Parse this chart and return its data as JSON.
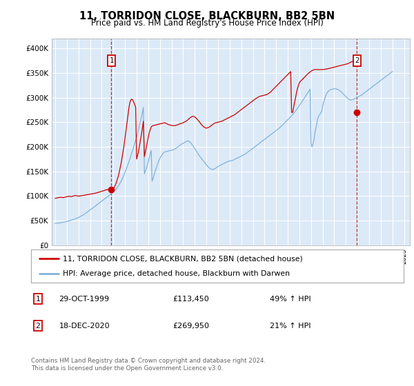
{
  "title": "11, TORRIDON CLOSE, BLACKBURN, BB2 5BN",
  "subtitle": "Price paid vs. HM Land Registry's House Price Index (HPI)",
  "background_color": "#dce9f7",
  "ylim": [
    0,
    420000
  ],
  "yticks": [
    0,
    50000,
    100000,
    150000,
    200000,
    250000,
    300000,
    350000,
    400000
  ],
  "ytick_labels": [
    "£0",
    "£50K",
    "£100K",
    "£150K",
    "£200K",
    "£250K",
    "£300K",
    "£350K",
    "£400K"
  ],
  "red_line_color": "#cc0000",
  "blue_line_color": "#7fb3d9",
  "sale1_year": 1999.83,
  "sale1_price": 113450,
  "sale1_label": "1",
  "sale1_date": "29-OCT-1999",
  "sale1_amount": "£113,450",
  "sale1_hpi": "49% ↑ HPI",
  "sale2_year": 2020.96,
  "sale2_price": 269950,
  "sale2_label": "2",
  "sale2_date": "18-DEC-2020",
  "sale2_amount": "£269,950",
  "sale2_hpi": "21% ↑ HPI",
  "legend_label_red": "11, TORRIDON CLOSE, BLACKBURN, BB2 5BN (detached house)",
  "legend_label_blue": "HPI: Average price, detached house, Blackburn with Darwen",
  "footer": "Contains HM Land Registry data © Crown copyright and database right 2024.\nThis data is licensed under the Open Government Licence v3.0.",
  "hpi_x": [
    1995.0,
    1995.08,
    1995.17,
    1995.25,
    1995.33,
    1995.42,
    1995.5,
    1995.58,
    1995.67,
    1995.75,
    1995.83,
    1995.92,
    1996.0,
    1996.08,
    1996.17,
    1996.25,
    1996.33,
    1996.42,
    1996.5,
    1996.58,
    1996.67,
    1996.75,
    1996.83,
    1996.92,
    1997.0,
    1997.08,
    1997.17,
    1997.25,
    1997.33,
    1997.42,
    1997.5,
    1997.58,
    1997.67,
    1997.75,
    1997.83,
    1997.92,
    1998.0,
    1998.08,
    1998.17,
    1998.25,
    1998.33,
    1998.42,
    1998.5,
    1998.58,
    1998.67,
    1998.75,
    1998.83,
    1998.92,
    1999.0,
    1999.08,
    1999.17,
    1999.25,
    1999.33,
    1999.42,
    1999.5,
    1999.58,
    1999.67,
    1999.75,
    1999.83,
    1999.92,
    2000.0,
    2000.08,
    2000.17,
    2000.25,
    2000.33,
    2000.42,
    2000.5,
    2000.58,
    2000.67,
    2000.75,
    2000.83,
    2000.92,
    2001.0,
    2001.08,
    2001.17,
    2001.25,
    2001.33,
    2001.42,
    2001.5,
    2001.58,
    2001.67,
    2001.75,
    2001.83,
    2001.92,
    2002.0,
    2002.08,
    2002.17,
    2002.25,
    2002.33,
    2002.42,
    2002.5,
    2002.58,
    2002.67,
    2002.75,
    2002.83,
    2002.92,
    2003.0,
    2003.08,
    2003.17,
    2003.25,
    2003.33,
    2003.42,
    2003.5,
    2003.58,
    2003.67,
    2003.75,
    2003.83,
    2003.92,
    2004.0,
    2004.08,
    2004.17,
    2004.25,
    2004.33,
    2004.42,
    2004.5,
    2004.58,
    2004.67,
    2004.75,
    2004.83,
    2004.92,
    2005.0,
    2005.08,
    2005.17,
    2005.25,
    2005.33,
    2005.42,
    2005.5,
    2005.58,
    2005.67,
    2005.75,
    2005.83,
    2005.92,
    2006.0,
    2006.08,
    2006.17,
    2006.25,
    2006.33,
    2006.42,
    2006.5,
    2006.58,
    2006.67,
    2006.75,
    2006.83,
    2006.92,
    2007.0,
    2007.08,
    2007.17,
    2007.25,
    2007.33,
    2007.42,
    2007.5,
    2007.58,
    2007.67,
    2007.75,
    2007.83,
    2007.92,
    2008.0,
    2008.08,
    2008.17,
    2008.25,
    2008.33,
    2008.42,
    2008.5,
    2008.58,
    2008.67,
    2008.75,
    2008.83,
    2008.92,
    2009.0,
    2009.08,
    2009.17,
    2009.25,
    2009.33,
    2009.42,
    2009.5,
    2009.58,
    2009.67,
    2009.75,
    2009.83,
    2009.92,
    2010.0,
    2010.08,
    2010.17,
    2010.25,
    2010.33,
    2010.42,
    2010.5,
    2010.58,
    2010.67,
    2010.75,
    2010.83,
    2010.92,
    2011.0,
    2011.08,
    2011.17,
    2011.25,
    2011.33,
    2011.42,
    2011.5,
    2011.58,
    2011.67,
    2011.75,
    2011.83,
    2011.92,
    2012.0,
    2012.08,
    2012.17,
    2012.25,
    2012.33,
    2012.42,
    2012.5,
    2012.58,
    2012.67,
    2012.75,
    2012.83,
    2012.92,
    2013.0,
    2013.08,
    2013.17,
    2013.25,
    2013.33,
    2013.42,
    2013.5,
    2013.58,
    2013.67,
    2013.75,
    2013.83,
    2013.92,
    2014.0,
    2014.08,
    2014.17,
    2014.25,
    2014.33,
    2014.42,
    2014.5,
    2014.58,
    2014.67,
    2014.75,
    2014.83,
    2014.92,
    2015.0,
    2015.08,
    2015.17,
    2015.25,
    2015.33,
    2015.42,
    2015.5,
    2015.58,
    2015.67,
    2015.75,
    2015.83,
    2015.92,
    2016.0,
    2016.08,
    2016.17,
    2016.25,
    2016.33,
    2016.42,
    2016.5,
    2016.58,
    2016.67,
    2016.75,
    2016.83,
    2016.92,
    2017.0,
    2017.08,
    2017.17,
    2017.25,
    2017.33,
    2017.42,
    2017.5,
    2017.58,
    2017.67,
    2017.75,
    2017.83,
    2017.92,
    2018.0,
    2018.08,
    2018.17,
    2018.25,
    2018.33,
    2018.42,
    2018.5,
    2018.58,
    2018.67,
    2018.75,
    2018.83,
    2018.92,
    2019.0,
    2019.08,
    2019.17,
    2019.25,
    2019.33,
    2019.42,
    2019.5,
    2019.58,
    2019.67,
    2019.75,
    2019.83,
    2019.92,
    2020.0,
    2020.08,
    2020.17,
    2020.25,
    2020.33,
    2020.42,
    2020.5,
    2020.58,
    2020.67,
    2020.75,
    2020.83,
    2020.92,
    2021.0,
    2021.08,
    2021.17,
    2021.25,
    2021.33,
    2021.42,
    2021.5,
    2021.58,
    2021.67,
    2021.75,
    2021.83,
    2021.92,
    2022.0,
    2022.08,
    2022.17,
    2022.25,
    2022.33,
    2022.42,
    2022.5,
    2022.58,
    2022.67,
    2022.75,
    2022.83,
    2022.92,
    2023.0,
    2023.08,
    2023.17,
    2023.25,
    2023.33,
    2023.42,
    2023.5,
    2023.58,
    2023.67,
    2023.75,
    2023.83,
    2023.92,
    2024.0,
    2024.08,
    2024.17,
    2024.25,
    2024.33,
    2024.42,
    2024.5,
    2024.58,
    2024.67,
    2024.75,
    2024.83,
    2024.92,
    2025.0
  ],
  "hpi_y": [
    44000,
    44200,
    44500,
    44800,
    45200,
    45500,
    45800,
    46200,
    46500,
    46900,
    47200,
    47600,
    48000,
    48500,
    49100,
    49700,
    50300,
    51000,
    51700,
    52400,
    53100,
    53800,
    54600,
    55400,
    56200,
    57200,
    58200,
    59300,
    60400,
    61600,
    62800,
    64200,
    65600,
    67000,
    68500,
    70000,
    71500,
    73000,
    74500,
    76000,
    77500,
    79000,
    80500,
    82000,
    83500,
    85000,
    86500,
    88000,
    89500,
    91000,
    92500,
    94000,
    95500,
    97000,
    98500,
    100000,
    101500,
    103000,
    104500,
    106000,
    108000,
    110000,
    112000,
    114500,
    117000,
    120000,
    123000,
    126500,
    130000,
    134000,
    138500,
    143000,
    148000,
    153000,
    158000,
    163500,
    169000,
    175000,
    181000,
    187500,
    194000,
    200500,
    207000,
    213500,
    220000,
    228000,
    236000,
    244000,
    252000,
    261000,
    270500,
    280000,
    145000,
    150000,
    156000,
    163000,
    170000,
    177500,
    185000,
    192500,
    130000,
    136000,
    142500,
    149000,
    155500,
    161500,
    167000,
    172000,
    176500,
    180000,
    183000,
    186000,
    188000,
    189500,
    190000,
    190500,
    191000,
    191500,
    192000,
    192500,
    193000,
    193500,
    194000,
    195000,
    196000,
    197500,
    199000,
    200500,
    202000,
    203500,
    205000,
    206000,
    207000,
    208000,
    209000,
    210500,
    211500,
    212000,
    211000,
    209500,
    207500,
    205000,
    202000,
    199000,
    196000,
    193000,
    190000,
    187000,
    184000,
    181000,
    178500,
    176000,
    173500,
    171000,
    168500,
    166000,
    163500,
    161000,
    159000,
    157000,
    155500,
    154500,
    154000,
    154000,
    154500,
    155500,
    157000,
    158500,
    160000,
    161000,
    162000,
    163000,
    164000,
    165000,
    166000,
    167000,
    168000,
    169000,
    170000,
    170500,
    171000,
    171500,
    172000,
    172500,
    173000,
    174000,
    175000,
    176000,
    177000,
    178000,
    179000,
    180000,
    181000,
    182000,
    183000,
    184000,
    185000,
    186500,
    188000,
    189500,
    191000,
    192500,
    194000,
    195500,
    197000,
    198500,
    200000,
    201500,
    203000,
    204500,
    206000,
    207500,
    209000,
    210500,
    212000,
    213500,
    215000,
    216500,
    218000,
    219500,
    221000,
    222500,
    224000,
    225500,
    227000,
    228500,
    230000,
    231500,
    233000,
    234500,
    236000,
    237500,
    239000,
    241000,
    243000,
    245000,
    247000,
    249000,
    251000,
    253000,
    255000,
    257000,
    259000,
    261000,
    263000,
    265500,
    268000,
    270500,
    273000,
    275500,
    278000,
    281000,
    284000,
    287000,
    290000,
    293000,
    296000,
    299000,
    302000,
    305000,
    308000,
    311000,
    314000,
    317000,
    208000,
    200000,
    205000,
    215000,
    228000,
    238000,
    248000,
    258000,
    263000,
    265000,
    269000,
    272000,
    282000,
    290000,
    297000,
    303000,
    308000,
    311000,
    313000,
    315000,
    316000,
    316500,
    317000,
    317500,
    318000,
    318000,
    317500,
    317000,
    316000,
    315000,
    313500,
    312000,
    310000,
    308000,
    306000,
    304000,
    302000,
    300000,
    298500,
    297000,
    295500,
    295000,
    295500,
    296000,
    297000,
    298000,
    299000,
    300000,
    301000,
    302000,
    303000,
    304000,
    305000,
    306500,
    308000,
    309500,
    311000,
    312500,
    314000,
    315500,
    317000,
    318500,
    320000,
    321500,
    323000,
    324500,
    326000,
    327500,
    329000,
    330500,
    332000,
    333500,
    335000,
    336500,
    338000,
    339500,
    341000,
    342500,
    344000,
    345500,
    347000,
    348500,
    350000,
    351500,
    353000
  ],
  "red_x": [
    1995.0,
    1995.08,
    1995.17,
    1995.25,
    1995.33,
    1995.42,
    1995.5,
    1995.58,
    1995.67,
    1995.75,
    1995.83,
    1995.92,
    1996.0,
    1996.08,
    1996.17,
    1996.25,
    1996.33,
    1996.42,
    1996.5,
    1996.58,
    1996.67,
    1996.75,
    1996.83,
    1996.92,
    1997.0,
    1997.08,
    1997.17,
    1997.25,
    1997.33,
    1997.42,
    1997.5,
    1997.58,
    1997.67,
    1997.75,
    1997.83,
    1997.92,
    1998.0,
    1998.08,
    1998.17,
    1998.25,
    1998.33,
    1998.42,
    1998.5,
    1998.58,
    1998.67,
    1998.75,
    1998.83,
    1998.92,
    1999.0,
    1999.08,
    1999.17,
    1999.25,
    1999.33,
    1999.42,
    1999.5,
    1999.58,
    1999.67,
    1999.75,
    1999.83,
    1999.92,
    2000.0,
    2000.08,
    2000.17,
    2000.25,
    2000.33,
    2000.42,
    2000.5,
    2000.58,
    2000.67,
    2000.75,
    2000.83,
    2000.92,
    2001.0,
    2001.08,
    2001.17,
    2001.25,
    2001.33,
    2001.42,
    2001.5,
    2001.58,
    2001.67,
    2001.75,
    2001.83,
    2001.92,
    2002.0,
    2002.08,
    2002.17,
    2002.25,
    2002.33,
    2002.42,
    2002.5,
    2002.58,
    2002.67,
    2002.75,
    2002.83,
    2002.92,
    2003.0,
    2003.08,
    2003.17,
    2003.25,
    2003.33,
    2003.42,
    2003.5,
    2003.58,
    2003.67,
    2003.75,
    2003.83,
    2003.92,
    2004.0,
    2004.08,
    2004.17,
    2004.25,
    2004.33,
    2004.42,
    2004.5,
    2004.58,
    2004.67,
    2004.75,
    2004.83,
    2004.92,
    2005.0,
    2005.08,
    2005.17,
    2005.25,
    2005.33,
    2005.42,
    2005.5,
    2005.58,
    2005.67,
    2005.75,
    2005.83,
    2005.92,
    2006.0,
    2006.08,
    2006.17,
    2006.25,
    2006.33,
    2006.42,
    2006.5,
    2006.58,
    2006.67,
    2006.75,
    2006.83,
    2006.92,
    2007.0,
    2007.08,
    2007.17,
    2007.25,
    2007.33,
    2007.42,
    2007.5,
    2007.58,
    2007.67,
    2007.75,
    2007.83,
    2007.92,
    2008.0,
    2008.08,
    2008.17,
    2008.25,
    2008.33,
    2008.42,
    2008.5,
    2008.58,
    2008.67,
    2008.75,
    2008.83,
    2008.92,
    2009.0,
    2009.08,
    2009.17,
    2009.25,
    2009.33,
    2009.42,
    2009.5,
    2009.58,
    2009.67,
    2009.75,
    2009.83,
    2009.92,
    2010.0,
    2010.08,
    2010.17,
    2010.25,
    2010.33,
    2010.42,
    2010.5,
    2010.58,
    2010.67,
    2010.75,
    2010.83,
    2010.92,
    2011.0,
    2011.08,
    2011.17,
    2011.25,
    2011.33,
    2011.42,
    2011.5,
    2011.58,
    2011.67,
    2011.75,
    2011.83,
    2011.92,
    2012.0,
    2012.08,
    2012.17,
    2012.25,
    2012.33,
    2012.42,
    2012.5,
    2012.58,
    2012.67,
    2012.75,
    2012.83,
    2012.92,
    2013.0,
    2013.08,
    2013.17,
    2013.25,
    2013.33,
    2013.42,
    2013.5,
    2013.58,
    2013.67,
    2013.75,
    2013.83,
    2013.92,
    2014.0,
    2014.08,
    2014.17,
    2014.25,
    2014.33,
    2014.42,
    2014.5,
    2014.58,
    2014.67,
    2014.75,
    2014.83,
    2014.92,
    2015.0,
    2015.08,
    2015.17,
    2015.25,
    2015.33,
    2015.42,
    2015.5,
    2015.58,
    2015.67,
    2015.75,
    2015.83,
    2015.92,
    2016.0,
    2016.08,
    2016.17,
    2016.25,
    2016.33,
    2016.42,
    2016.5,
    2016.58,
    2016.67,
    2016.75,
    2016.83,
    2016.92,
    2017.0,
    2017.08,
    2017.17,
    2017.25,
    2017.33,
    2017.42,
    2017.5,
    2017.58,
    2017.67,
    2017.75,
    2017.83,
    2017.92,
    2018.0,
    2018.08,
    2018.17,
    2018.25,
    2018.33,
    2018.42,
    2018.5,
    2018.58,
    2018.67,
    2018.75,
    2018.83,
    2018.92,
    2019.0,
    2019.08,
    2019.17,
    2019.25,
    2019.33,
    2019.42,
    2019.5,
    2019.58,
    2019.67,
    2019.75,
    2019.83,
    2019.92,
    2020.0,
    2020.08,
    2020.17,
    2020.25,
    2020.33,
    2020.42,
    2020.5,
    2020.58,
    2020.67,
    2020.75,
    2020.83,
    2020.92,
    2021.0,
    2021.08,
    2021.17,
    2021.25,
    2021.33,
    2021.42,
    2021.5,
    2021.58,
    2021.67,
    2021.75,
    2021.83,
    2021.92,
    2022.0,
    2022.08,
    2022.17,
    2022.25,
    2022.33,
    2022.42,
    2022.5,
    2022.58,
    2022.67,
    2022.75,
    2022.83,
    2022.92,
    2023.0,
    2023.08,
    2023.17,
    2023.25,
    2023.33,
    2023.42,
    2023.5,
    2023.58,
    2023.67,
    2023.75,
    2023.83,
    2023.92,
    2024.0,
    2024.08,
    2024.17,
    2024.25,
    2024.33,
    2024.42,
    2024.5,
    2024.58,
    2024.67,
    2024.75,
    2024.83,
    2024.92,
    2025.0
  ],
  "red_y": [
    95000,
    95500,
    96000,
    96500,
    97000,
    97000,
    97500,
    97000,
    96500,
    97000,
    97500,
    98000,
    98500,
    99000,
    99500,
    99000,
    98500,
    99000,
    99500,
    100000,
    100500,
    101000,
    100500,
    100000,
    99500,
    99800,
    100000,
    100300,
    100700,
    101000,
    101400,
    101800,
    102200,
    102600,
    103000,
    103400,
    103700,
    104000,
    104300,
    104600,
    105000,
    105400,
    105900,
    106400,
    107000,
    107600,
    108200,
    108900,
    109500,
    110000,
    110700,
    111300,
    112000,
    112600,
    113200,
    113450,
    113450,
    113500,
    113450,
    113500,
    115000,
    118000,
    122000,
    127000,
    133000,
    140000,
    148000,
    157000,
    167000,
    178000,
    190000,
    203000,
    217000,
    232000,
    248000,
    263000,
    278000,
    290000,
    295000,
    297000,
    295000,
    291000,
    286000,
    280000,
    175000,
    182000,
    191000,
    202000,
    214000,
    226000,
    239000,
    252000,
    180000,
    189000,
    199000,
    209000,
    219000,
    228000,
    235000,
    240000,
    242000,
    243000,
    243500,
    244000,
    244500,
    245000,
    245500,
    246000,
    246500,
    247000,
    247500,
    248000,
    248500,
    249000,
    248000,
    247000,
    246000,
    245000,
    244500,
    244000,
    243500,
    243000,
    243000,
    243000,
    243000,
    244000,
    244500,
    245000,
    246000,
    247000,
    247500,
    248000,
    249000,
    250000,
    251000,
    252000,
    253500,
    255000,
    257000,
    258500,
    260000,
    261500,
    262000,
    261500,
    260500,
    259000,
    257000,
    255000,
    252500,
    250000,
    247500,
    245000,
    243000,
    241000,
    239500,
    238500,
    238000,
    238500,
    239000,
    240000,
    241500,
    243000,
    244500,
    246000,
    247500,
    248500,
    249000,
    249500,
    250000,
    250500,
    251000,
    251500,
    252000,
    253000,
    254000,
    255000,
    256000,
    257000,
    258000,
    259000,
    260000,
    261000,
    262000,
    263000,
    264000,
    265000,
    266500,
    268000,
    269500,
    271000,
    272500,
    274000,
    275500,
    277000,
    278500,
    280000,
    281500,
    283000,
    284500,
    286000,
    287500,
    289000,
    290500,
    292000,
    293500,
    295000,
    296500,
    298000,
    299000,
    300500,
    301500,
    302500,
    303000,
    303500,
    304000,
    304500,
    305000,
    305500,
    306000,
    307000,
    308000,
    309500,
    311000,
    313000,
    315000,
    317000,
    319000,
    321000,
    323000,
    325000,
    327000,
    329000,
    331000,
    333000,
    335000,
    337000,
    339000,
    341000,
    343000,
    345000,
    347000,
    349000,
    351000,
    353000,
    269950,
    269950,
    280000,
    290000,
    300000,
    310000,
    318000,
    325000,
    330000,
    333000,
    335000,
    337000,
    339000,
    341000,
    343000,
    345000,
    347000,
    349000,
    350500,
    352000,
    353500,
    355000,
    356000,
    356500,
    357000,
    357000,
    357000,
    357000,
    357000,
    357000,
    357000,
    357000,
    357000,
    357000,
    357500,
    358000,
    358000,
    358500,
    359000,
    359500,
    360000,
    360500,
    361000,
    361500,
    362000,
    362500,
    363000,
    363500,
    364000,
    364500,
    365000,
    365500,
    366000,
    366500,
    367000,
    367500,
    368000,
    368500,
    369000,
    370000,
    371000,
    372000,
    373000,
    374000,
    375000,
    376000,
    377000,
    378000,
    379000,
    380000,
    381000
  ]
}
